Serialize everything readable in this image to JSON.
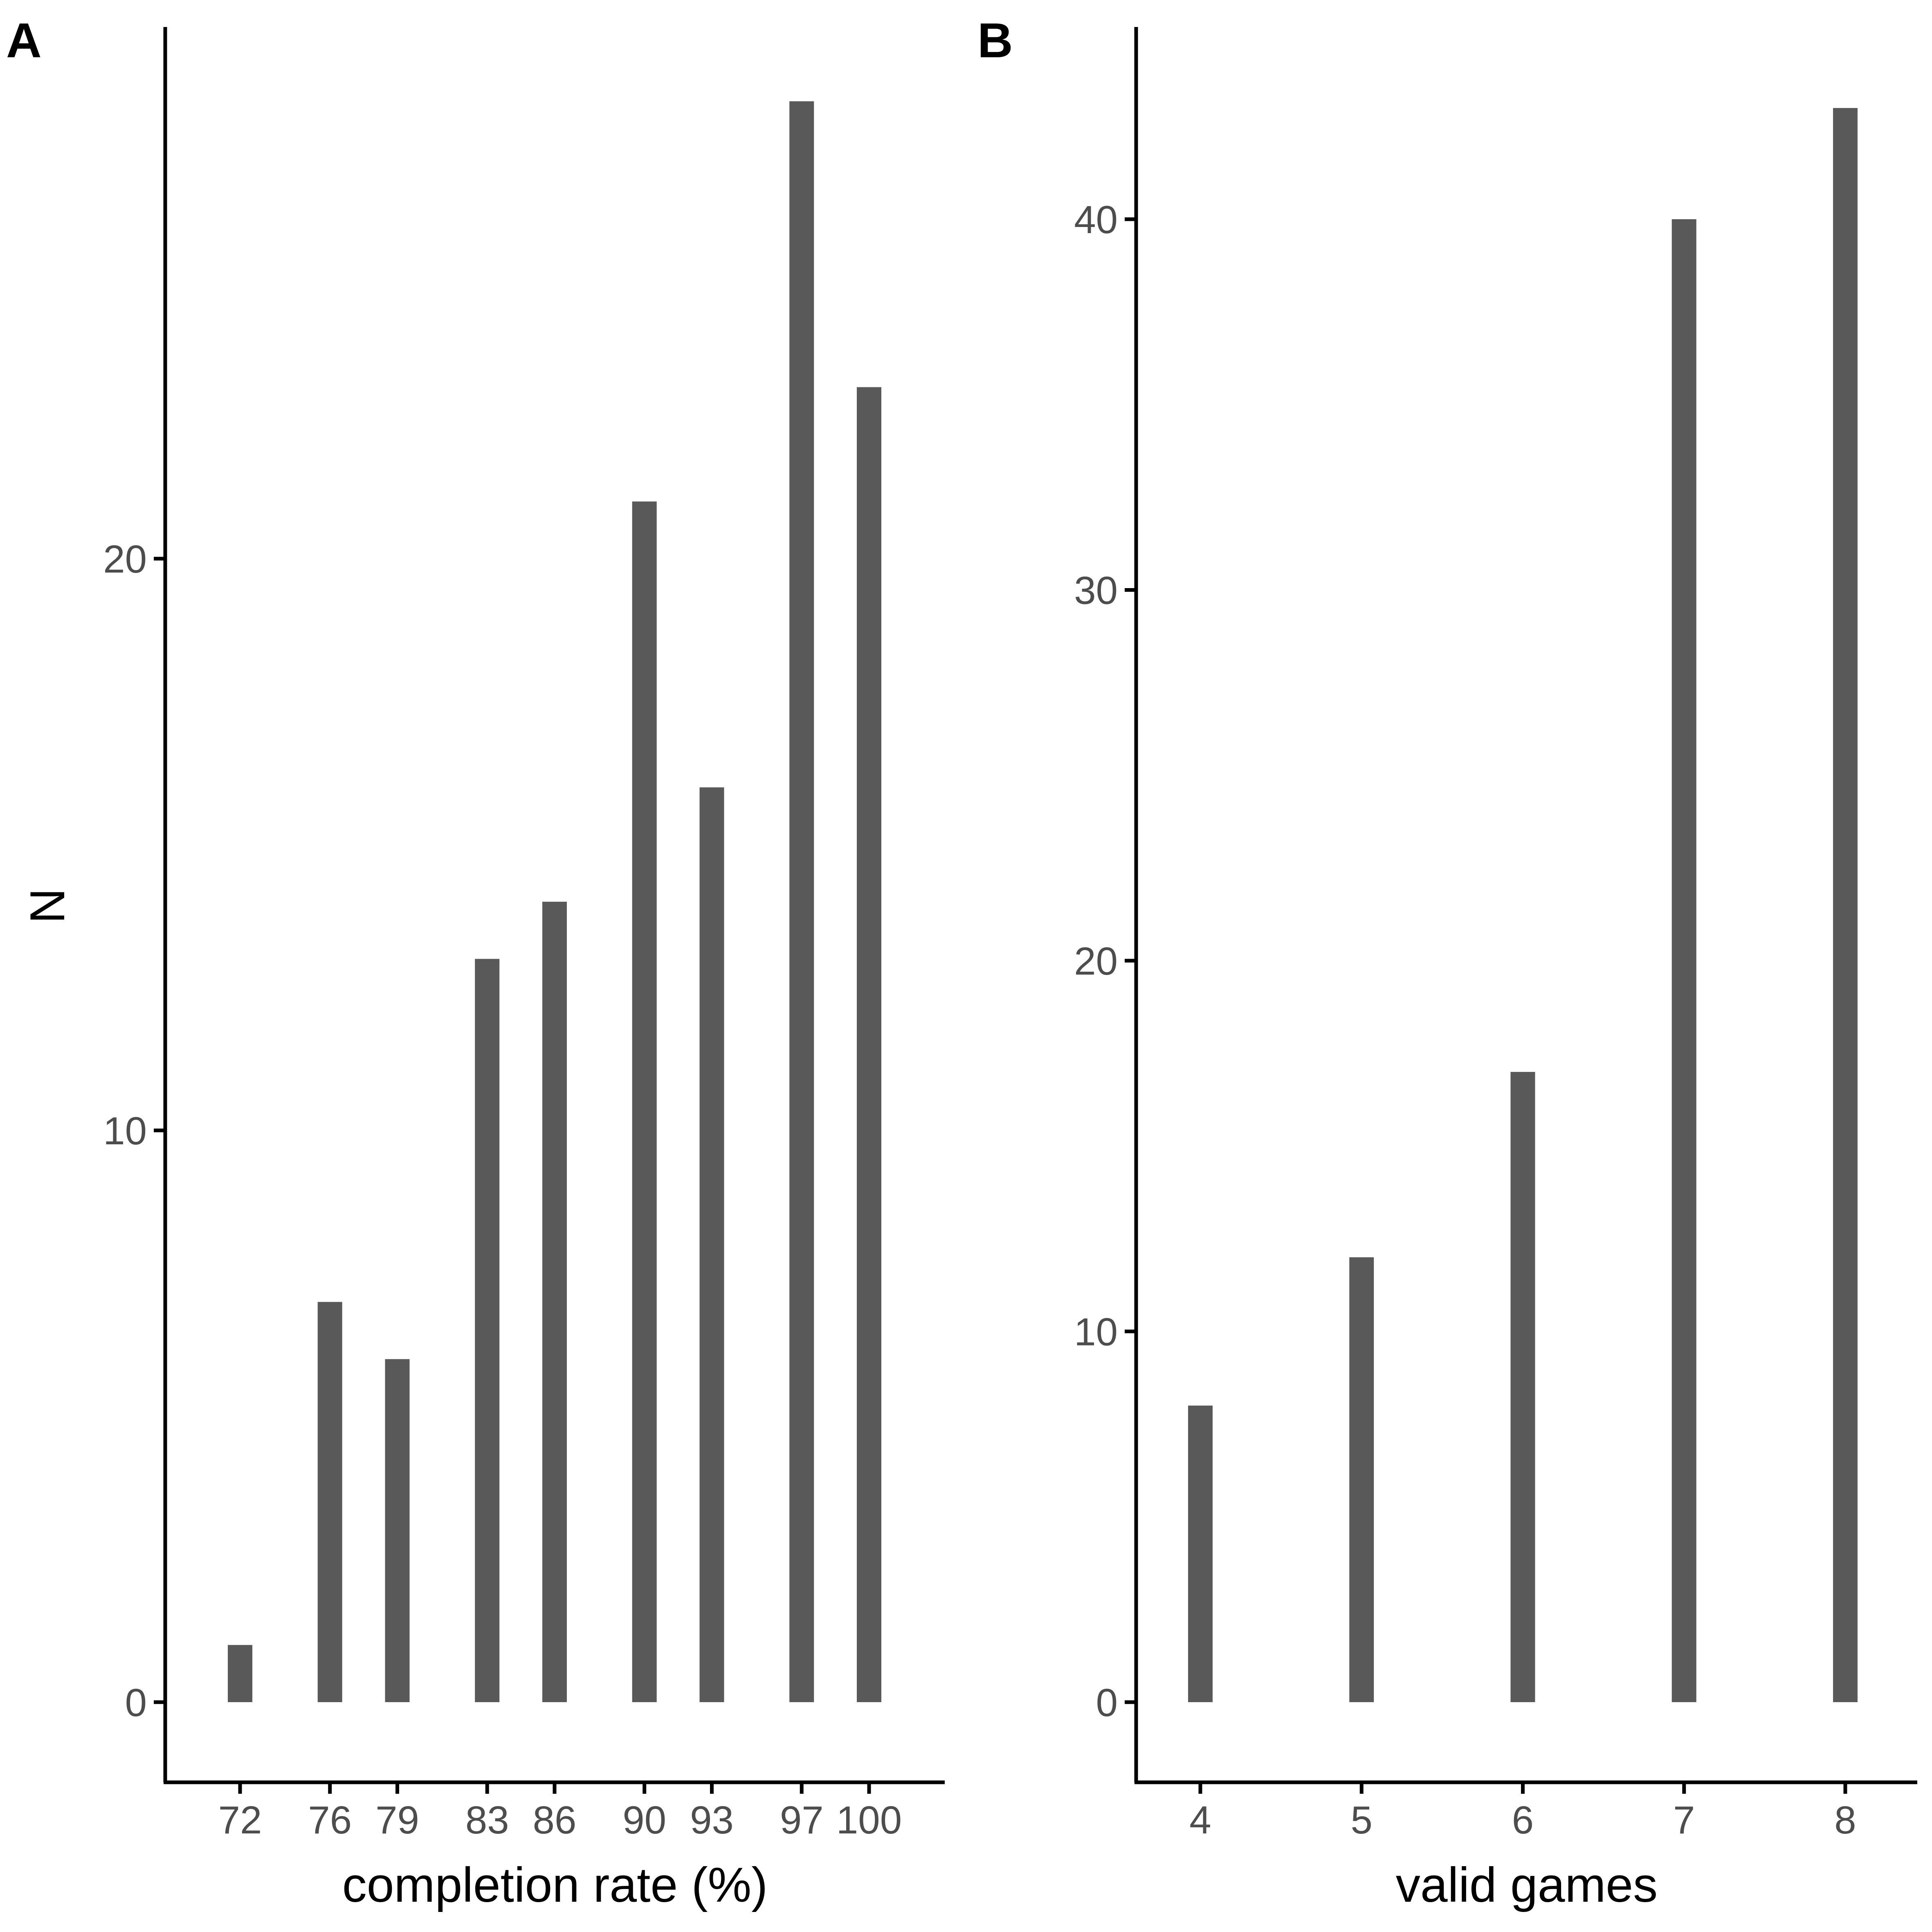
{
  "bar_color": "#595959",
  "chart_data": [
    {
      "type": "bar",
      "panel": "A",
      "xlabel": "completion rate (%)",
      "ylabel": "N",
      "categories": [
        "72",
        "76",
        "79",
        "83",
        "86",
        "90",
        "93",
        "97",
        "100"
      ],
      "x": [
        72,
        76,
        79,
        83,
        86,
        90,
        93,
        97,
        100
      ],
      "values": [
        1,
        7,
        6,
        13,
        14,
        21,
        16,
        28,
        23
      ],
      "ylim": [
        -1.4,
        29.5
      ],
      "yticks": [
        0,
        10,
        20
      ],
      "grid": false
    },
    {
      "type": "bar",
      "panel": "B",
      "xlabel": "valid games",
      "ylabel": "",
      "categories": [
        "4",
        "5",
        "6",
        "7",
        "8"
      ],
      "x": [
        4,
        5,
        6,
        7,
        8
      ],
      "values": [
        8,
        12,
        17,
        40,
        43
      ],
      "ylim": [
        -2.2,
        45.3
      ],
      "yticks": [
        0,
        10,
        20,
        30,
        40
      ],
      "grid": false
    }
  ]
}
